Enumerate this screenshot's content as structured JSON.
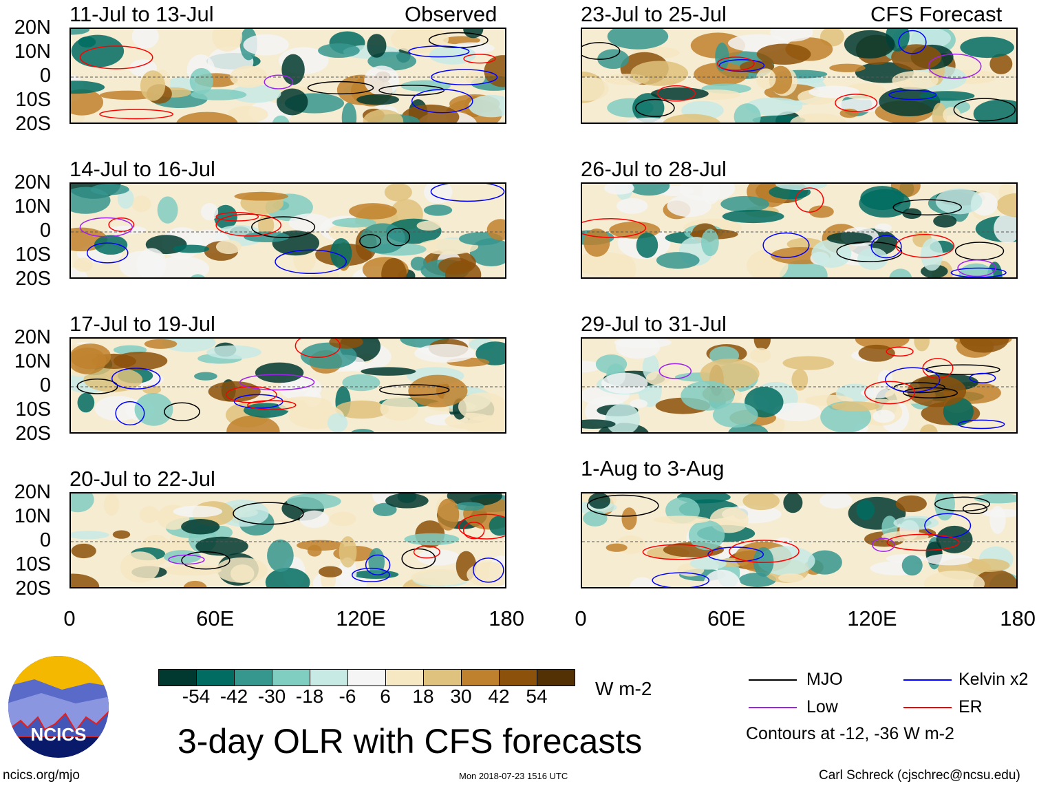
{
  "header": {
    "left_label": "Observed",
    "right_label": "CFS Forecast"
  },
  "panels": {
    "left": [
      "11-Jul to 13-Jul",
      "14-Jul to 16-Jul",
      "17-Jul to 19-Jul",
      "20-Jul to 22-Jul"
    ],
    "right": [
      "23-Jul to 25-Jul",
      "26-Jul to 28-Jul",
      "29-Jul to 31-Jul",
      "1-Aug to 3-Aug"
    ]
  },
  "lat_ticks": [
    "20N",
    "10N",
    "0",
    "10S",
    "20S"
  ],
  "lon_ticks": [
    "0",
    "60E",
    "120E",
    "180"
  ],
  "colorbar": {
    "colors": [
      "#01382f",
      "#016c61",
      "#36978f",
      "#80cdc1",
      "#c7eae5",
      "#f5f5f5",
      "#f6e8c3",
      "#dfc27d",
      "#bf812d",
      "#8c510a",
      "#543005"
    ],
    "labels": [
      "-54",
      "-42",
      "-30",
      "-18",
      "-6",
      "6",
      "18",
      "30",
      "42",
      "54"
    ],
    "units": "W m-2"
  },
  "legend": {
    "items": [
      {
        "label": "MJO",
        "color": "#000000"
      },
      {
        "label": "Kelvin x2",
        "color": "#0000ff"
      },
      {
        "label": "Low",
        "color": "#a020f0"
      },
      {
        "label": "ER",
        "color": "#ff0000"
      }
    ],
    "note": "Contours at -12, -36 W m-2"
  },
  "logo": {
    "text": "NCICS"
  },
  "title": "3-day OLR with CFS forecasts",
  "footer": {
    "url": "ncics.org/mjo",
    "timestamp": "Mon 2018-07-23 1516 UTC",
    "credit": "Carl Schreck (cjschrec@ncsu.edu)"
  }
}
